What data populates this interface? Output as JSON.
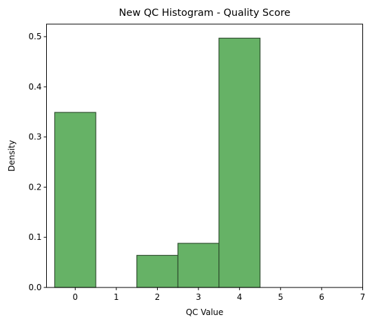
{
  "chart_data": {
    "type": "bar",
    "title": "New QC Histogram - Quality Score",
    "xlabel": "QC Value",
    "ylabel": "Density",
    "xlim": [
      -0.7,
      7
    ],
    "ylim": [
      0,
      0.525
    ],
    "xticks": [
      0,
      1,
      2,
      3,
      4,
      5,
      6,
      7
    ],
    "yticks": [
      0.0,
      0.1,
      0.2,
      0.3,
      0.4,
      0.5
    ],
    "ytick_labels": [
      "0.0",
      "0.1",
      "0.2",
      "0.3",
      "0.4",
      "0.5"
    ],
    "bin_edges": [
      -0.5,
      0.5,
      1.5,
      2.5,
      3.5,
      4.5,
      5.5,
      6.5
    ],
    "categories": [
      "0",
      "1",
      "2",
      "3",
      "4",
      "5",
      "6"
    ],
    "values": [
      0.349,
      0.0,
      0.064,
      0.088,
      0.497,
      0.0,
      0.0
    ],
    "bar_color": "#66b266",
    "bar_edge_color": "#2f4f2f",
    "grid": false,
    "legend": "none"
  }
}
